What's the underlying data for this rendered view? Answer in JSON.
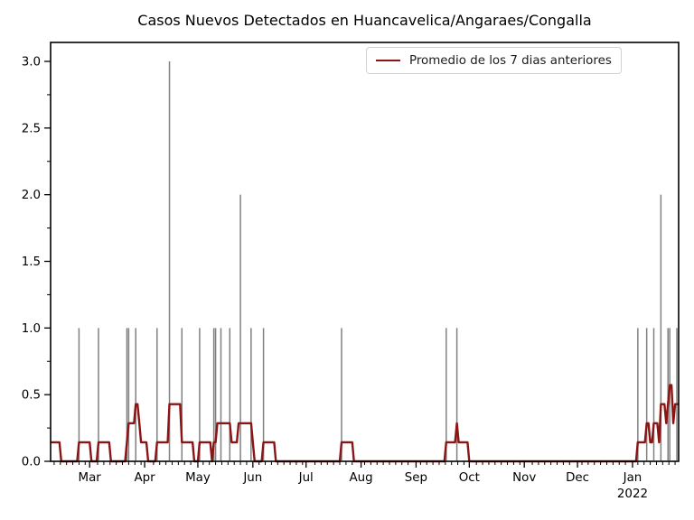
{
  "title": "Casos Nuevos Detectados en Huancavelica/Angaraes/Congalla",
  "legend": {
    "label": "Promedio de los 7 dias anteriores"
  },
  "colors": {
    "average_line": "#8b1414",
    "case_spike": "#808080",
    "frame": "#000000",
    "tick_text": "#000000",
    "legend_border": "#d2d2d2",
    "background": "#ffffff"
  },
  "chart_data": {
    "type": "line",
    "title": "Casos Nuevos Detectados en Huancavelica/Angaraes/Congalla",
    "xlabel": "",
    "ylabel": "",
    "legend_position": "upper right",
    "grid": false,
    "ylim": [
      0,
      3.1
    ],
    "x_start_date": "2021-02-07",
    "x_total_days": 354,
    "y_major_ticks": [
      {
        "label": "0.0",
        "value": 0.0
      },
      {
        "label": "0.5",
        "value": 0.5
      },
      {
        "label": "1.0",
        "value": 1.0
      },
      {
        "label": "1.5",
        "value": 1.5
      },
      {
        "label": "2.0",
        "value": 2.0
      },
      {
        "label": "2.5",
        "value": 2.5
      },
      {
        "label": "3.0",
        "value": 3.0
      }
    ],
    "y_minor_step": 0.25,
    "x_minor_step_days": 3.5,
    "x_month_ticks": [
      {
        "label": "Mar",
        "day": 22
      },
      {
        "label": "Apr",
        "day": 53
      },
      {
        "label": "May",
        "day": 83
      },
      {
        "label": "Jun",
        "day": 114
      },
      {
        "label": "Jul",
        "day": 144
      },
      {
        "label": "Aug",
        "day": 175
      },
      {
        "label": "Sep",
        "day": 206
      },
      {
        "label": "Oct",
        "day": 236
      },
      {
        "label": "Nov",
        "day": 267
      },
      {
        "label": "Dec",
        "day": 297
      },
      {
        "label": "Jan",
        "day": 328
      }
    ],
    "year_label": {
      "label": "2022",
      "day": 328
    },
    "daily_cases": [
      {
        "day": 16,
        "count": 1,
        "date": "2021-02-23"
      },
      {
        "day": 27,
        "count": 1,
        "date": "2021-03-06"
      },
      {
        "day": 43,
        "count": 1,
        "date": "2021-03-22"
      },
      {
        "day": 44,
        "count": 1,
        "date": "2021-03-23"
      },
      {
        "day": 48,
        "count": 1,
        "date": "2021-03-27"
      },
      {
        "day": 60,
        "count": 1,
        "date": "2021-04-08"
      },
      {
        "day": 67,
        "count": 3,
        "date": "2021-04-15"
      },
      {
        "day": 74,
        "count": 1,
        "date": "2021-04-22"
      },
      {
        "day": 84,
        "count": 1,
        "date": "2021-05-02"
      },
      {
        "day": 92,
        "count": 1,
        "date": "2021-05-10"
      },
      {
        "day": 93,
        "count": 1,
        "date": "2021-05-11"
      },
      {
        "day": 96,
        "count": 1,
        "date": "2021-05-14"
      },
      {
        "day": 101,
        "count": 1,
        "date": "2021-05-19"
      },
      {
        "day": 107,
        "count": 2,
        "date": "2021-05-25"
      },
      {
        "day": 113,
        "count": 1,
        "date": "2021-05-31"
      },
      {
        "day": 120,
        "count": 1,
        "date": "2021-06-07"
      },
      {
        "day": 164,
        "count": 1,
        "date": "2021-07-21"
      },
      {
        "day": 223,
        "count": 1,
        "date": "2021-09-18"
      },
      {
        "day": 229,
        "count": 1,
        "date": "2021-09-24"
      },
      {
        "day": 331,
        "count": 1,
        "date": "2022-01-04"
      },
      {
        "day": 336,
        "count": 1,
        "date": "2022-01-09"
      },
      {
        "day": 340,
        "count": 1,
        "date": "2022-01-13"
      },
      {
        "day": 344,
        "count": 2,
        "date": "2022-01-17"
      },
      {
        "day": 348,
        "count": 1,
        "date": "2022-01-21"
      },
      {
        "day": 349,
        "count": 1,
        "date": "2022-01-22"
      },
      {
        "day": 353,
        "count": 1,
        "date": "2022-01-26"
      }
    ],
    "avg_line_units": "sevenths: plotted value = n / 7 cases per day",
    "avg_line_points": [
      [
        0,
        1
      ],
      [
        5,
        1
      ],
      [
        6,
        0
      ],
      [
        15,
        0
      ],
      [
        16,
        1
      ],
      [
        22,
        1
      ],
      [
        23,
        0
      ],
      [
        26,
        0
      ],
      [
        27,
        1
      ],
      [
        33,
        1
      ],
      [
        34,
        0
      ],
      [
        42,
        0
      ],
      [
        43,
        1
      ],
      [
        44,
        2
      ],
      [
        47,
        2
      ],
      [
        48,
        3
      ],
      [
        49,
        3
      ],
      [
        50,
        2
      ],
      [
        51,
        1
      ],
      [
        54,
        1
      ],
      [
        55,
        0
      ],
      [
        59,
        0
      ],
      [
        60,
        1
      ],
      [
        66,
        1
      ],
      [
        67,
        3
      ],
      [
        73,
        3
      ],
      [
        74,
        1
      ],
      [
        80,
        1
      ],
      [
        81,
        0
      ],
      [
        83,
        0
      ],
      [
        84,
        1
      ],
      [
        90,
        1
      ],
      [
        91,
        0
      ],
      [
        92,
        1
      ],
      [
        93,
        1
      ],
      [
        94,
        2
      ],
      [
        101,
        2
      ],
      [
        102,
        1
      ],
      [
        105,
        1
      ],
      [
        106,
        2
      ],
      [
        113,
        2
      ],
      [
        114,
        1
      ],
      [
        115,
        0
      ],
      [
        119,
        0
      ],
      [
        120,
        1
      ],
      [
        126,
        1
      ],
      [
        127,
        0
      ],
      [
        163,
        0
      ],
      [
        164,
        1
      ],
      [
        170,
        1
      ],
      [
        171,
        0
      ],
      [
        222,
        0
      ],
      [
        223,
        1
      ],
      [
        228,
        1
      ],
      [
        229,
        2
      ],
      [
        230,
        1
      ],
      [
        235,
        1
      ],
      [
        236,
        0
      ],
      [
        330,
        0
      ],
      [
        331,
        1
      ],
      [
        335,
        1
      ],
      [
        336,
        2
      ],
      [
        337,
        2
      ],
      [
        338,
        1
      ],
      [
        339,
        1
      ],
      [
        340,
        2
      ],
      [
        342,
        2
      ],
      [
        343,
        1
      ],
      [
        344,
        3
      ],
      [
        346,
        3
      ],
      [
        347,
        2
      ],
      [
        348,
        3
      ],
      [
        349,
        4
      ],
      [
        350,
        4
      ],
      [
        351,
        2
      ],
      [
        352,
        3
      ],
      [
        354,
        3
      ]
    ]
  }
}
